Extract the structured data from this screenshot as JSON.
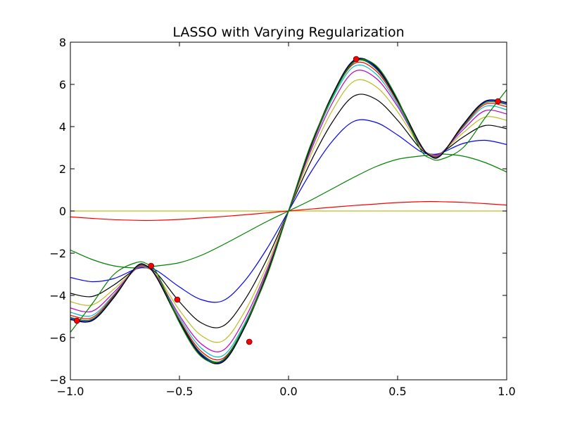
{
  "chart_data": {
    "type": "line",
    "title": "LASSO with Varying Regularization",
    "xlabel": "",
    "ylabel": "",
    "xlim": [
      -1.0,
      1.0
    ],
    "ylim": [
      -8,
      8
    ],
    "xticks": [
      -1.0,
      -0.5,
      0.0,
      0.5,
      1.0
    ],
    "xtick_labels": [
      "−1.0",
      "−0.5",
      "0.0",
      "0.5",
      "1.0"
    ],
    "yticks": [
      -8,
      -6,
      -4,
      -2,
      0,
      2,
      4,
      6,
      8
    ],
    "ytick_labels": [
      "−8",
      "−6",
      "−4",
      "−2",
      "0",
      "2",
      "4",
      "6",
      "8"
    ],
    "grid": false,
    "legend": "none",
    "x": [
      -1.0,
      -0.9,
      -0.8,
      -0.7,
      -0.65,
      -0.6,
      -0.5,
      -0.4,
      -0.3,
      -0.2,
      -0.1,
      0.0,
      0.1,
      0.2,
      0.3,
      0.4,
      0.5,
      0.6,
      0.65,
      0.7,
      0.8,
      0.9,
      1.0
    ],
    "series": [
      {
        "color": "#bcbd22",
        "values": [
          0,
          0,
          0,
          0,
          0,
          0,
          0,
          0,
          0,
          0,
          0,
          0,
          0,
          0,
          0,
          0,
          0,
          0,
          0,
          0,
          0,
          0,
          0
        ]
      },
      {
        "color": "#ff0000",
        "values": [
          -0.28,
          -0.35,
          -0.41,
          -0.44,
          -0.45,
          -0.44,
          -0.4,
          -0.33,
          -0.26,
          -0.18,
          -0.09,
          0.0,
          0.09,
          0.18,
          0.26,
          0.33,
          0.4,
          0.44,
          0.45,
          0.44,
          0.41,
          0.35,
          0.28
        ]
      },
      {
        "color": "#008000",
        "values": [
          -1.85,
          -2.3,
          -2.6,
          -2.7,
          -2.65,
          -2.6,
          -2.45,
          -2.1,
          -1.6,
          -1.05,
          -0.5,
          0.0,
          0.5,
          1.05,
          1.6,
          2.1,
          2.45,
          2.6,
          2.65,
          2.7,
          2.6,
          2.3,
          1.85
        ]
      },
      {
        "color": "#0000ff",
        "values": [
          -3.15,
          -3.35,
          -3.2,
          -2.75,
          -2.7,
          -2.85,
          -3.6,
          -4.2,
          -4.25,
          -3.3,
          -1.8,
          0.0,
          1.8,
          3.3,
          4.25,
          4.2,
          3.6,
          2.85,
          2.7,
          2.75,
          3.2,
          3.35,
          3.15
        ]
      },
      {
        "color": "#000000",
        "values": [
          -3.9,
          -4.05,
          -3.5,
          -2.75,
          -2.7,
          -3.0,
          -4.3,
          -5.3,
          -5.45,
          -4.2,
          -2.3,
          0.0,
          2.3,
          4.2,
          5.45,
          5.3,
          4.3,
          3.0,
          2.7,
          2.75,
          3.5,
          4.05,
          3.9
        ]
      },
      {
        "color": "#bcbd22",
        "values": [
          -4.3,
          -4.45,
          -3.7,
          -2.75,
          -2.7,
          -3.1,
          -4.7,
          -5.9,
          -6.15,
          -4.75,
          -2.6,
          0.0,
          2.6,
          4.75,
          6.15,
          5.9,
          4.7,
          3.1,
          2.7,
          2.75,
          3.7,
          4.45,
          4.3
        ]
      },
      {
        "color": "#bf00bf",
        "values": [
          -4.6,
          -4.75,
          -3.85,
          -2.75,
          -2.68,
          -3.15,
          -4.95,
          -6.3,
          -6.6,
          -5.1,
          -2.8,
          0.0,
          2.8,
          5.1,
          6.6,
          6.3,
          4.95,
          3.15,
          2.68,
          2.75,
          3.85,
          4.75,
          4.6
        ]
      },
      {
        "color": "#00bfbf",
        "values": [
          -4.8,
          -4.95,
          -3.95,
          -2.72,
          -2.66,
          -3.18,
          -5.05,
          -6.5,
          -6.85,
          -5.3,
          -2.9,
          0.0,
          2.9,
          5.3,
          6.85,
          6.5,
          5.05,
          3.18,
          2.66,
          2.72,
          3.95,
          4.95,
          4.8
        ]
      },
      {
        "color": "#ff0000",
        "values": [
          -4.95,
          -5.05,
          -4.0,
          -2.7,
          -2.64,
          -3.2,
          -5.15,
          -6.65,
          -6.98,
          -5.4,
          -2.95,
          0.0,
          2.95,
          5.4,
          6.98,
          6.65,
          5.15,
          3.2,
          2.64,
          2.7,
          4.0,
          5.05,
          4.95
        ]
      },
      {
        "color": "#008000",
        "values": [
          -5.05,
          -5.12,
          -4.05,
          -2.68,
          -2.62,
          -3.22,
          -5.2,
          -6.75,
          -7.08,
          -5.45,
          -3.0,
          0.0,
          3.0,
          5.45,
          7.08,
          6.75,
          5.2,
          3.22,
          2.62,
          2.68,
          4.05,
          5.12,
          5.05
        ]
      },
      {
        "color": "#0000ff",
        "values": [
          -5.1,
          -5.17,
          -4.08,
          -2.66,
          -2.61,
          -3.23,
          -5.23,
          -6.8,
          -7.12,
          -5.48,
          -3.02,
          0.0,
          3.02,
          5.48,
          7.12,
          6.8,
          5.23,
          3.23,
          2.61,
          2.66,
          4.08,
          5.17,
          5.1
        ]
      },
      {
        "color": "#000000",
        "values": [
          -5.15,
          -5.2,
          -4.1,
          -2.65,
          -2.6,
          -3.24,
          -5.25,
          -6.85,
          -7.15,
          -5.5,
          -3.03,
          0.0,
          3.03,
          5.5,
          7.15,
          6.85,
          5.25,
          3.24,
          2.6,
          2.65,
          4.1,
          5.2,
          5.15
        ]
      },
      {
        "color": "#008000",
        "values": [
          -5.75,
          -4.4,
          -3.0,
          -2.45,
          -2.5,
          -3.0,
          -5.3,
          -6.9,
          -7.05,
          -5.4,
          -3.1,
          0.0,
          3.1,
          5.4,
          7.05,
          6.9,
          5.3,
          3.0,
          2.5,
          2.45,
          3.0,
          4.4,
          5.75
        ]
      }
    ],
    "points": {
      "color": "#ff0000",
      "x": [
        -0.97,
        -0.63,
        -0.51,
        -0.18,
        0.31,
        0.96
      ],
      "y": [
        -5.2,
        -2.6,
        -4.2,
        -6.2,
        7.2,
        5.2
      ]
    }
  }
}
